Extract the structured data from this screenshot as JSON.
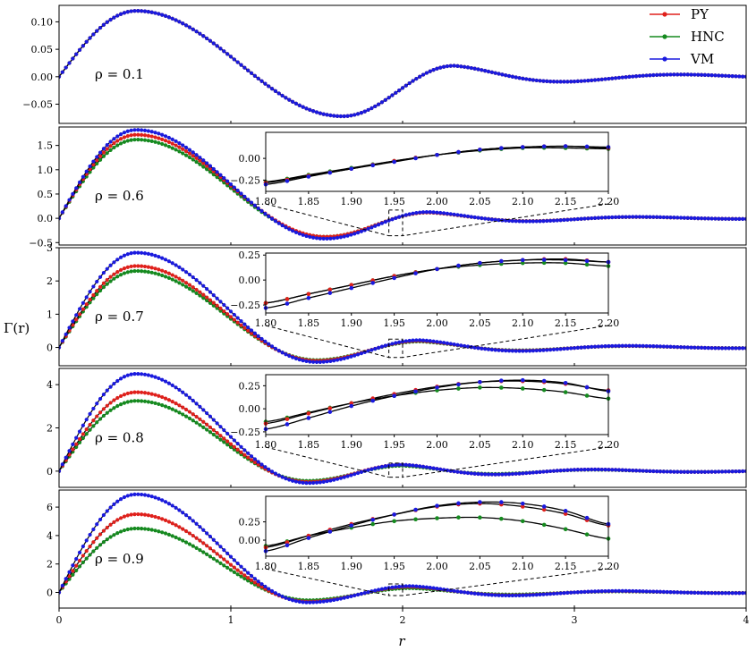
{
  "figure": {
    "xlabel": "r",
    "ylabel": "Γ(r)"
  },
  "legend": {
    "placement": "top-right",
    "entries": [
      {
        "name": "PY",
        "color": "#e0201b"
      },
      {
        "name": "HNC",
        "color": "#158a1f"
      },
      {
        "name": "VM",
        "color": "#1a1adf"
      }
    ]
  },
  "chart_data": [
    {
      "type": "line",
      "annotation": "ρ = 0.1",
      "rho": 0.1,
      "xlim": [
        0,
        4
      ],
      "ylim": [
        -0.085,
        0.13
      ],
      "yticks": [
        -0.05,
        0.0,
        0.05,
        0.1
      ],
      "ytick_labels": [
        "−0.05",
        "0.00",
        "0.05",
        "0.10"
      ],
      "peak": {
        "x": 0.45,
        "PY": 0.12,
        "HNC": 0.12,
        "VM": 0.12
      },
      "min1": {
        "x": 1.65,
        "PY": -0.072,
        "HNC": -0.072,
        "VM": -0.072
      },
      "peak2": {
        "x": 2.3,
        "PY": 0.02,
        "HNC": 0.02,
        "VM": 0.02
      },
      "grid": false,
      "inset": null
    },
    {
      "type": "line",
      "annotation": "ρ = 0.6",
      "rho": 0.6,
      "xlim": [
        0,
        4
      ],
      "ylim": [
        -0.55,
        1.88
      ],
      "yticks": [
        -0.5,
        0.0,
        0.5,
        1.0,
        1.5
      ],
      "ytick_labels": [
        "−0.5",
        "0.0",
        "0.5",
        "1.0",
        "1.5"
      ],
      "peak": {
        "x": 0.45,
        "PY": 1.72,
        "HNC": 1.62,
        "VM": 1.82
      },
      "min1": {
        "x": 1.55,
        "PY": -0.38,
        "HNC": -0.38,
        "VM": -0.42
      },
      "peak2": {
        "x": 2.15,
        "PY": 0.12,
        "HNC": 0.12,
        "VM": 0.13
      },
      "grid": false,
      "inset": {
        "xlim": [
          1.8,
          2.2
        ],
        "ylim": [
          -0.38,
          0.3
        ],
        "xticks": [
          "1.80",
          "1.85",
          "1.90",
          "1.95",
          "2.00",
          "2.05",
          "2.10",
          "2.15",
          "2.20"
        ],
        "yticks": [
          -0.25,
          0.0
        ],
        "ytick_labels": [
          "−0.25",
          "0.00"
        ],
        "zoom_box": {
          "x": [
            1.8,
            2.2
          ],
          "y": [
            -0.36,
            0.17
          ]
        },
        "PY": [
          -0.28,
          -0.2,
          -0.12,
          -0.03,
          0.04,
          0.1,
          0.13,
          0.14,
          0.12
        ],
        "HNC": [
          -0.27,
          -0.19,
          -0.11,
          -0.03,
          0.04,
          0.09,
          0.12,
          0.12,
          0.11
        ],
        "VM": [
          -0.3,
          -0.21,
          -0.12,
          -0.04,
          0.04,
          0.1,
          0.13,
          0.14,
          0.13
        ]
      }
    },
    {
      "type": "line",
      "annotation": "ρ = 0.7",
      "rho": 0.7,
      "xlim": [
        0,
        4
      ],
      "ylim": [
        -0.55,
        3.0
      ],
      "yticks": [
        0,
        1,
        2,
        3
      ],
      "ytick_labels": [
        "0",
        "1",
        "2",
        "3"
      ],
      "peak": {
        "x": 0.45,
        "PY": 2.45,
        "HNC": 2.3,
        "VM": 2.85
      },
      "min1": {
        "x": 1.5,
        "PY": -0.4,
        "HNC": -0.38,
        "VM": -0.44
      },
      "peak2": {
        "x": 2.1,
        "PY": 0.2,
        "HNC": 0.18,
        "VM": 0.22
      },
      "grid": false,
      "inset": {
        "xlim": [
          1.8,
          2.2
        ],
        "ylim": [
          -0.33,
          0.27
        ],
        "xticks": [
          "1.80",
          "1.85",
          "1.90",
          "1.95",
          "2.00",
          "2.05",
          "2.10",
          "2.15",
          "2.20"
        ],
        "yticks": [
          -0.25,
          0.0,
          0.25
        ],
        "ytick_labels": [
          "−0.25",
          "0.00",
          "0.25"
        ],
        "zoom_box": {
          "x": [
            1.8,
            2.2
          ],
          "y": [
            -0.3,
            0.25
          ]
        },
        "PY": [
          -0.23,
          -0.14,
          -0.05,
          0.04,
          0.11,
          0.17,
          0.2,
          0.21,
          0.18
        ],
        "HNC": [
          -0.23,
          -0.14,
          -0.05,
          0.04,
          0.11,
          0.15,
          0.17,
          0.17,
          0.14
        ],
        "VM": [
          -0.28,
          -0.18,
          -0.08,
          0.02,
          0.11,
          0.17,
          0.2,
          0.2,
          0.18
        ]
      }
    },
    {
      "type": "line",
      "annotation": "ρ = 0.8",
      "rho": 0.8,
      "xlim": [
        0,
        4
      ],
      "ylim": [
        -0.75,
        4.75
      ],
      "yticks": [
        0,
        2,
        4
      ],
      "ytick_labels": [
        "0",
        "2",
        "4"
      ],
      "peak": {
        "x": 0.45,
        "PY": 3.65,
        "HNC": 3.25,
        "VM": 4.5
      },
      "min1": {
        "x": 1.45,
        "PY": -0.5,
        "HNC": -0.45,
        "VM": -0.55
      },
      "peak2": {
        "x": 2.0,
        "PY": 0.3,
        "HNC": 0.25,
        "VM": 0.3
      },
      "grid": false,
      "inset": {
        "xlim": [
          1.8,
          2.2
        ],
        "ylim": [
          -0.28,
          0.37
        ],
        "xticks": [
          "1.80",
          "1.85",
          "1.90",
          "1.95",
          "2.00",
          "2.05",
          "2.10",
          "2.15",
          "2.20"
        ],
        "yticks": [
          -0.25,
          0.0,
          0.25
        ],
        "ytick_labels": [
          "−0.25",
          "0.00",
          "0.25"
        ],
        "zoom_box": {
          "x": [
            1.8,
            2.2
          ],
          "y": [
            -0.28,
            0.37
          ]
        },
        "PY": [
          -0.16,
          -0.05,
          0.06,
          0.16,
          0.24,
          0.29,
          0.3,
          0.27,
          0.2
        ],
        "HNC": [
          -0.14,
          -0.04,
          0.06,
          0.14,
          0.2,
          0.23,
          0.22,
          0.18,
          0.11
        ],
        "VM": [
          -0.22,
          -0.1,
          0.03,
          0.14,
          0.23,
          0.29,
          0.31,
          0.28,
          0.19
        ]
      }
    },
    {
      "type": "line",
      "annotation": "ρ = 0.9",
      "rho": 0.9,
      "xlim": [
        0,
        4
      ],
      "ylim": [
        -1.1,
        7.2
      ],
      "yticks": [
        0,
        2,
        4,
        6
      ],
      "ytick_labels": [
        "0",
        "2",
        "4",
        "6"
      ],
      "peak": {
        "x": 0.45,
        "PY": 5.5,
        "HNC": 4.5,
        "VM": 6.9
      },
      "min1": {
        "x": 1.45,
        "PY": -0.65,
        "HNC": -0.55,
        "VM": -0.7
      },
      "peak2": {
        "x": 2.05,
        "PY": 0.4,
        "HNC": 0.3,
        "VM": 0.45
      },
      "grid": false,
      "inset": {
        "xlim": [
          1.8,
          2.2
        ],
        "ylim": [
          -0.22,
          0.6
        ],
        "xticks": [
          "1.80",
          "1.85",
          "1.90",
          "1.95",
          "2.00",
          "2.05",
          "2.10",
          "2.15",
          "2.20"
        ],
        "yticks": [
          0.0,
          0.25
        ],
        "ytick_labels": [
          "0.00",
          "0.25"
        ],
        "zoom_box": {
          "x": [
            1.8,
            2.2
          ],
          "y": [
            -0.22,
            0.6
          ]
        },
        "PY": [
          -0.1,
          0.06,
          0.22,
          0.35,
          0.46,
          0.5,
          0.46,
          0.36,
          0.2
        ],
        "HNC": [
          -0.08,
          0.06,
          0.17,
          0.26,
          0.3,
          0.31,
          0.26,
          0.15,
          0.02
        ],
        "VM": [
          -0.15,
          0.03,
          0.2,
          0.35,
          0.47,
          0.52,
          0.5,
          0.4,
          0.22
        ]
      }
    }
  ],
  "x_axis": {
    "ticks": [
      0,
      1,
      2,
      3,
      4
    ],
    "tick_labels": [
      "0",
      "1",
      "2",
      "3",
      "4"
    ]
  }
}
